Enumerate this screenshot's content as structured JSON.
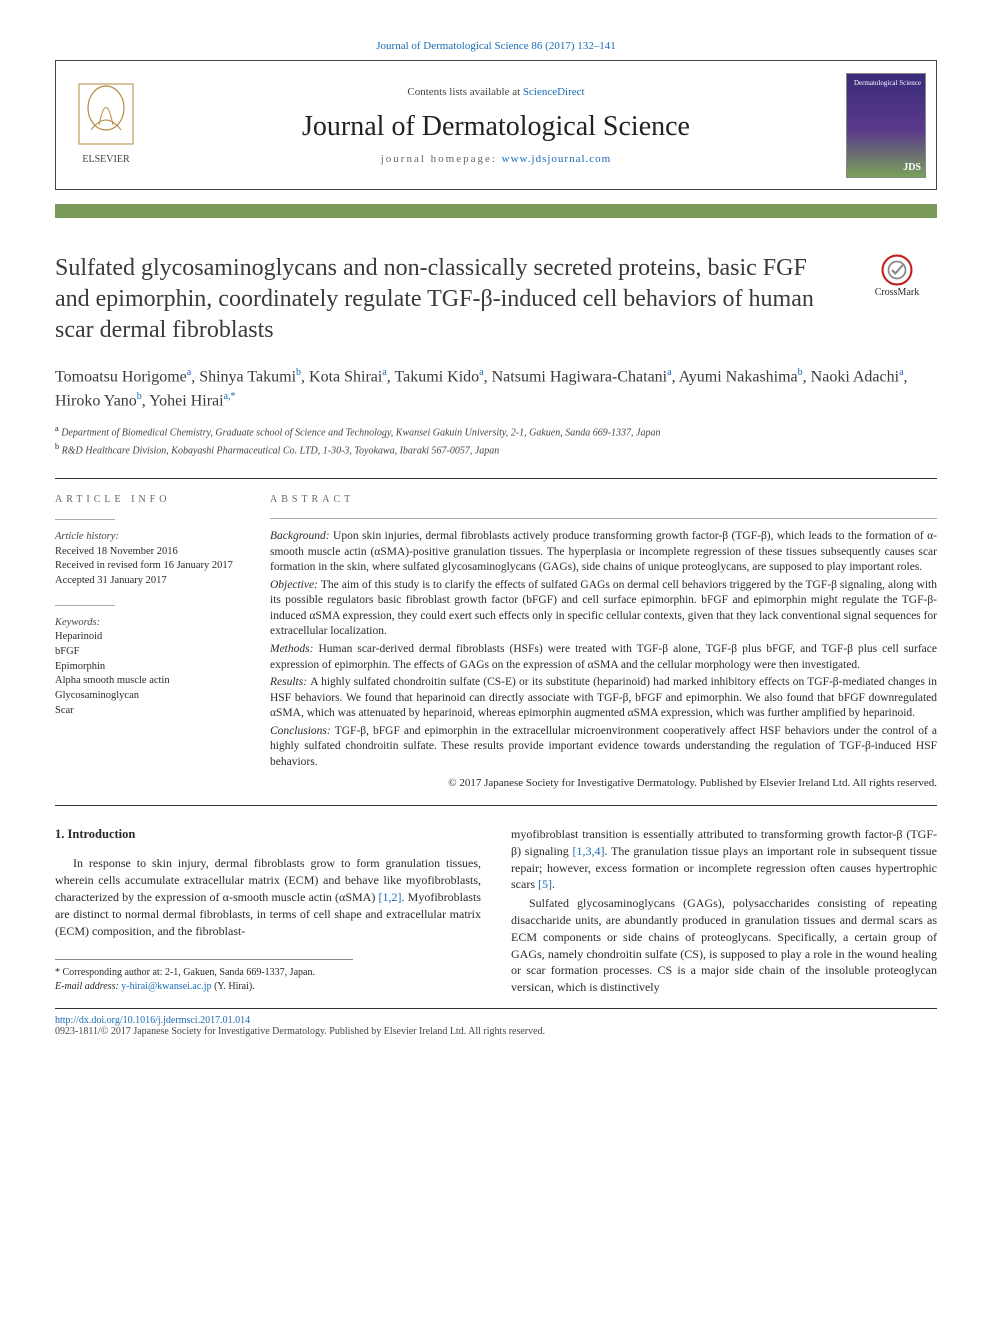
{
  "topLink": "Journal of Dermatological Science 86 (2017) 132–141",
  "header": {
    "contentsPrefix": "Contents lists available at ",
    "contentsLink": "ScienceDirect",
    "journalName": "Journal of Dermatological Science",
    "homepagePrefix": "journal homepage: ",
    "homepageLink": "www.jdsjournal.com",
    "coverTop": "Dermatological\nScience",
    "coverBottom": "JDS"
  },
  "crossmarkLabel": "CrossMark",
  "title": "Sulfated glycosaminoglycans and non-classically secreted proteins, basic FGF and epimorphin, coordinately regulate TGF-β-induced cell behaviors of human scar dermal fibroblasts",
  "authorsHtml": "Tomoatsu Horigome|a|, Shinya Takumi|b|, Kota Shirai|a|, Takumi Kido|a|, Natsumi Hagiwara-Chatani|a|, Ayumi Nakashima|b|, Naoki Adachi|a|, Hiroko Yano|b|, Yohei Hirai|a,*|",
  "affiliations": {
    "a": "Department of Biomedical Chemistry, Graduate school of Science and Technology, Kwansei Gakuin University, 2-1, Gakuen, Sanda 669-1337, Japan",
    "b": "R&D Healthcare Division, Kobayashi Pharmaceutical Co. LTD, 1-30-3, Toyokawa, Ibaraki 567-0057, Japan"
  },
  "articleInfo": {
    "heading": "ARTICLE INFO",
    "historyLabel": "Article history:",
    "received": "Received 18 November 2016",
    "revised": "Received in revised form 16 January 2017",
    "accepted": "Accepted 31 January 2017",
    "keywordsLabel": "Keywords:",
    "keywords": [
      "Heparinoid",
      "bFGF",
      "Epimorphin",
      "Alpha smooth muscle actin",
      "Glycosaminoglycan",
      "Scar"
    ]
  },
  "abstract": {
    "heading": "ABSTRACT",
    "background": "Upon skin injuries, dermal fibroblasts actively produce transforming growth factor-β (TGF-β), which leads to the formation of α-smooth muscle actin (αSMA)-positive granulation tissues. The hyperplasia or incomplete regression of these tissues subsequently causes scar formation in the skin, where sulfated glycosaminoglycans (GAGs), side chains of unique proteoglycans, are supposed to play important roles.",
    "objective": "The aim of this study is to clarify the effects of sulfated GAGs on dermal cell behaviors triggered by the TGF-β signaling, along with its possible regulators basic fibroblast growth factor (bFGF) and cell surface epimorphin. bFGF and epimorphin might regulate the TGF-β-induced αSMA expression, they could exert such effects only in specific cellular contexts, given that they lack conventional signal sequences for extracellular localization.",
    "methods": "Human scar-derived dermal fibroblasts (HSFs) were treated with TGF-β alone, TGF-β plus bFGF, and TGF-β plus cell surface expression of epimorphin. The effects of GAGs on the expression of αSMA and the cellular morphology were then investigated.",
    "results": "A highly sulfated chondroitin sulfate (CS-E) or its substitute (heparinoid) had marked inhibitory effects on TGF-β-mediated changes in HSF behaviors. We found that heparinoid can directly associate with TGF-β, bFGF and epimorphin. We also found that bFGF downregulated αSMA, which was attenuated by heparinoid, whereas epimorphin augmented αSMA expression, which was further amplified by heparinoid.",
    "conclusions": "TGF-β, bFGF and epimorphin in the extracellular microenvironment cooperatively affect HSF behaviors under the control of a highly sulfated chondroitin sulfate. These results provide important evidence towards understanding the regulation of TGF-β-induced HSF behaviors.",
    "copyright": "© 2017 Japanese Society for Investigative Dermatology. Published by Elsevier Ireland Ltd. All rights reserved."
  },
  "intro": {
    "heading": "1. Introduction",
    "p1a": "In response to skin injury, dermal fibroblasts grow to form granulation tissues, wherein cells accumulate extracellular matrix (ECM) and behave like myofibroblasts, characterized by the expression of α-smooth muscle actin (αSMA) ",
    "p1ref1": "[1,2]",
    "p1b": ". Myofibroblasts are distinct to normal dermal fibroblasts, in terms of cell shape and extracellular matrix (ECM) composition, and the fibroblast-",
    "p2a": "myofibroblast transition is essentially attributed to transforming growth factor-β (TGF-β) signaling ",
    "p2ref1": "[1,3,4]",
    "p2b": ". The granulation tissue plays an important role in subsequent tissue repair; however, excess formation or incomplete regression often causes hypertrophic scars ",
    "p2ref2": "[5]",
    "p2c": ".",
    "p3": "Sulfated glycosaminoglycans (GAGs), polysaccharides consisting of repeating disaccharide units, are abundantly produced in granulation tissues and dermal scars as ECM components or side chains of proteoglycans. Specifically, a certain group of GAGs, namely chondroitin sulfate (CS), is supposed to play a role in the wound healing or scar formation processes. CS is a major side chain of the insoluble proteoglycan versican, which is distinctively"
  },
  "corr": {
    "line1": "* Corresponding author at: 2-1, Gakuen, Sanda 669-1337, Japan.",
    "emailLabel": "E-mail address: ",
    "email": "y-hirai@kwansei.ac.jp",
    "emailSuffix": " (Y. Hirai)."
  },
  "footer": {
    "doi": "http://dx.doi.org/10.1016/j.jdermsci.2017.01.014",
    "copyright": "0923-1811/© 2017 Japanese Society for Investigative Dermatology. Published by Elsevier Ireland Ltd. All rights reserved."
  },
  "labels": {
    "background": "Background: ",
    "objective": "Objective: ",
    "methods": "Methods: ",
    "results": "Results: ",
    "conclusions": "Conclusions: "
  },
  "colors": {
    "link": "#1a6bb5",
    "ruleBar": "#7a9a5a",
    "text": "#2a2a2a"
  }
}
